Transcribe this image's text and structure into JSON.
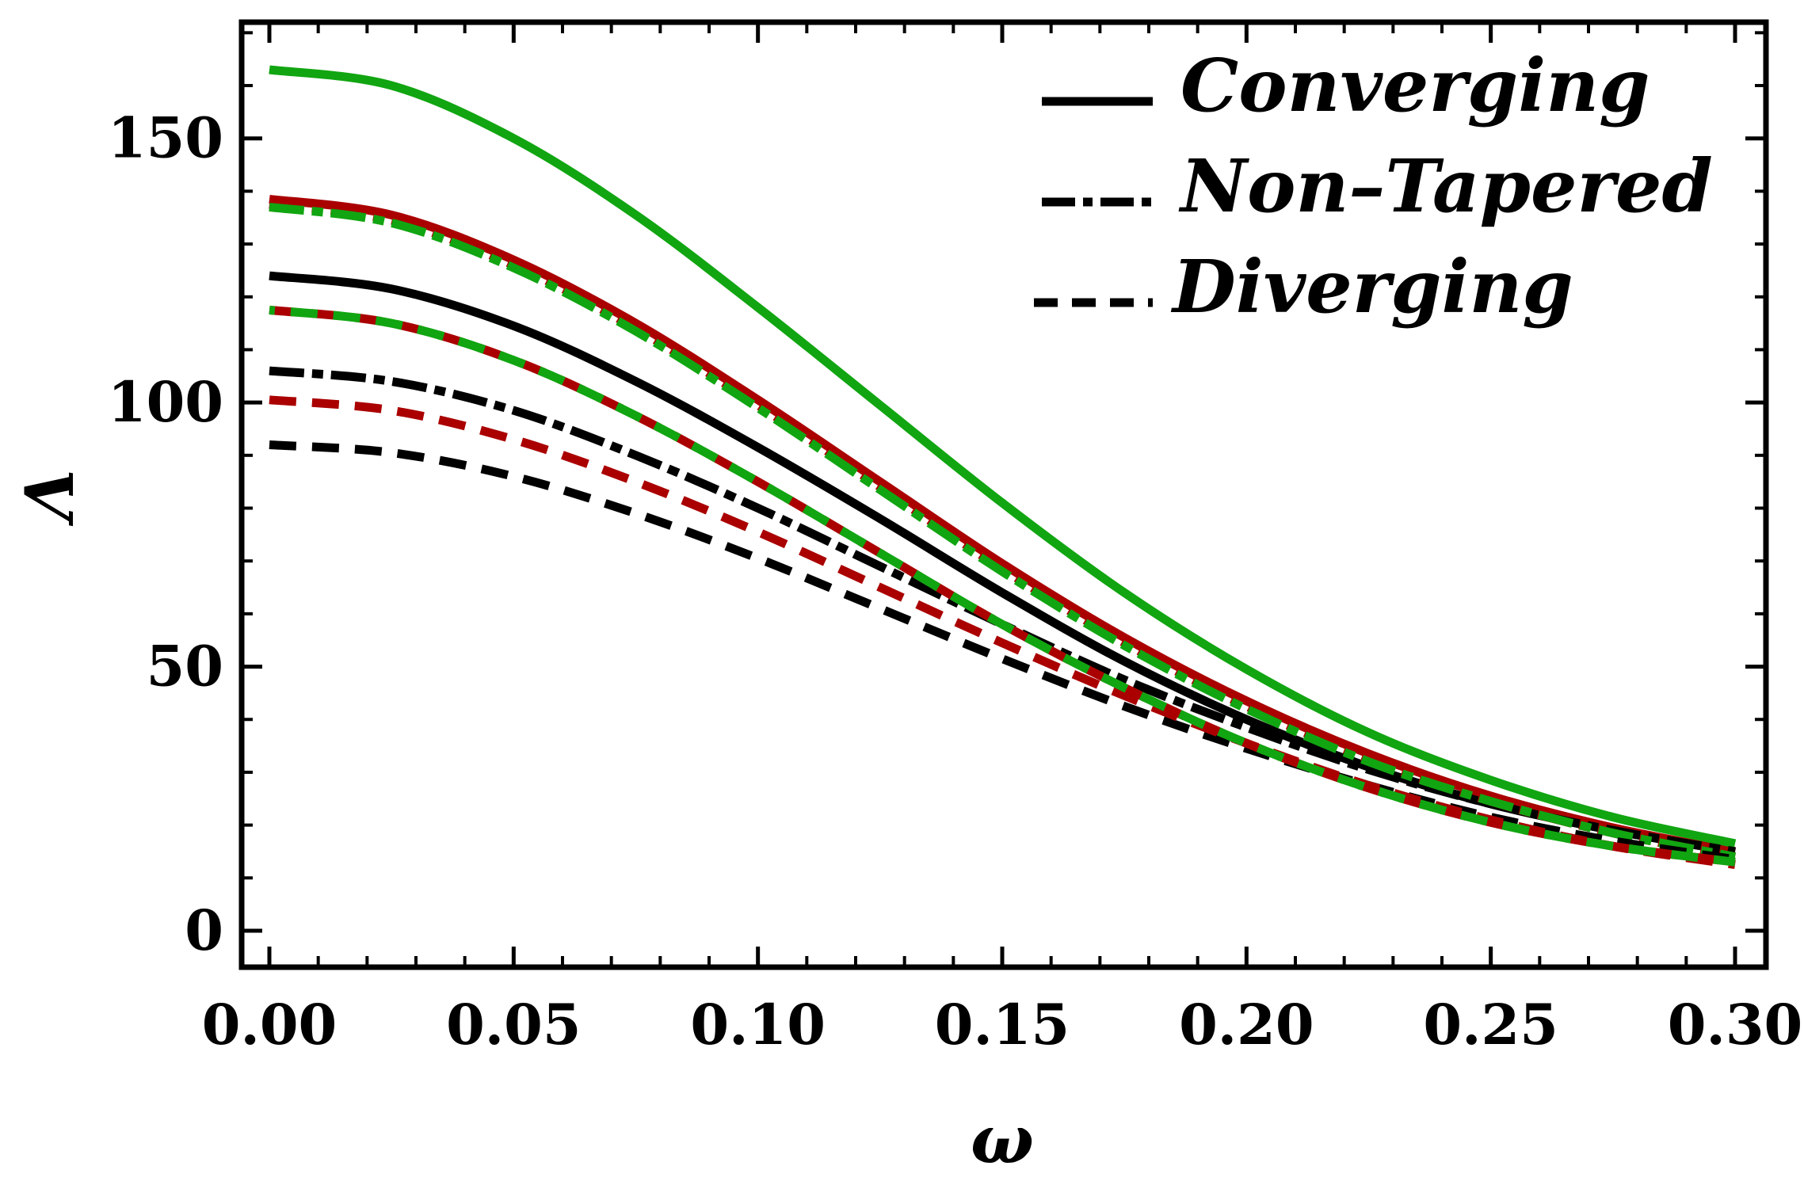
{
  "chart_data": {
    "type": "line",
    "title": "",
    "xlabel": "ω",
    "ylabel": "Λ",
    "xlim": [
      0,
      0.3
    ],
    "ylim": [
      -3,
      172
    ],
    "x_ticks": [
      0,
      0.05,
      0.1,
      0.15,
      0.2,
      0.25,
      0.3
    ],
    "x_tick_labels": [
      "0.00",
      "0.05",
      "0.10",
      "0.15",
      "0.20",
      "0.25",
      "0.30"
    ],
    "y_ticks": [
      0,
      50,
      100,
      150
    ],
    "y_tick_labels": [
      "0",
      "50",
      "100",
      "150"
    ],
    "grid": false,
    "legend_position": "top-right",
    "legend": [
      {
        "label": "Converging",
        "style": "solid"
      },
      {
        "label": "Non–Tapered",
        "style": "dashdot"
      },
      {
        "label": "Diverging",
        "style": "dashed"
      }
    ],
    "colors": {
      "black": "#000000",
      "red": "#aa0000",
      "green": "#11a511"
    },
    "x": [
      0,
      0.025,
      0.05,
      0.075,
      0.1,
      0.125,
      0.15,
      0.175,
      0.2,
      0.225,
      0.25,
      0.275,
      0.3
    ],
    "series": [
      {
        "name": "Converging (black)",
        "style": "solid",
        "color": "#000000",
        "values": [
          124,
          121.5,
          114.5,
          104,
          91.5,
          78,
          64,
          51,
          40,
          31,
          24,
          19,
          15
        ]
      },
      {
        "name": "Converging (red)",
        "style": "solid",
        "color": "#aa0000",
        "values": [
          138.5,
          135.5,
          127,
          115,
          100.5,
          85,
          69.5,
          55.5,
          43.5,
          33.5,
          25.5,
          19.5,
          15
        ]
      },
      {
        "name": "Converging (green)",
        "style": "solid",
        "color": "#11a511",
        "values": [
          163,
          160,
          150,
          135.5,
          118,
          99.5,
          81,
          64,
          49.5,
          37.5,
          28.5,
          21.5,
          16.5
        ]
      },
      {
        "name": "Non-Tapered (black)",
        "style": "dashdot",
        "color": "#000000",
        "values": [
          106,
          104,
          98.5,
          90,
          80,
          69,
          58,
          47.5,
          38.5,
          30.5,
          24,
          19,
          15
        ]
      },
      {
        "name": "Non-Tapered (red)",
        "style": "dashdot",
        "color": "#aa0000",
        "values": [
          137.5,
          134.5,
          126,
          114,
          99.5,
          84,
          68.5,
          54.5,
          42.5,
          32.5,
          24.5,
          18.5,
          14
        ]
      },
      {
        "name": "Non-Tapered (green)",
        "style": "dashdot",
        "color": "#11a511",
        "values": [
          137,
          134,
          125.5,
          113.5,
          99,
          83.5,
          68,
          54,
          42,
          32,
          24.5,
          18.5,
          14
        ]
      },
      {
        "name": "Diverging (black)",
        "style": "dashed",
        "color": "#000000",
        "values": [
          92,
          90.5,
          86,
          79,
          70.5,
          61,
          51.5,
          42.5,
          34.5,
          27.5,
          21.5,
          17,
          13.5
        ]
      },
      {
        "name": "Diverging (red)",
        "style": "dashed",
        "color": "#aa0000",
        "values": [
          100.5,
          98.5,
          93,
          85,
          75.5,
          65,
          54.5,
          44.5,
          35.5,
          27.5,
          21,
          16,
          12.5
        ]
      },
      {
        "name": "Diverging (red/green)",
        "style": "dashed",
        "color": "#aa0000",
        "color2": "#11a511",
        "values": [
          117.5,
          115,
          108,
          97.5,
          85,
          71.5,
          58,
          46,
          35.5,
          27,
          20.5,
          16,
          13
        ]
      }
    ]
  }
}
